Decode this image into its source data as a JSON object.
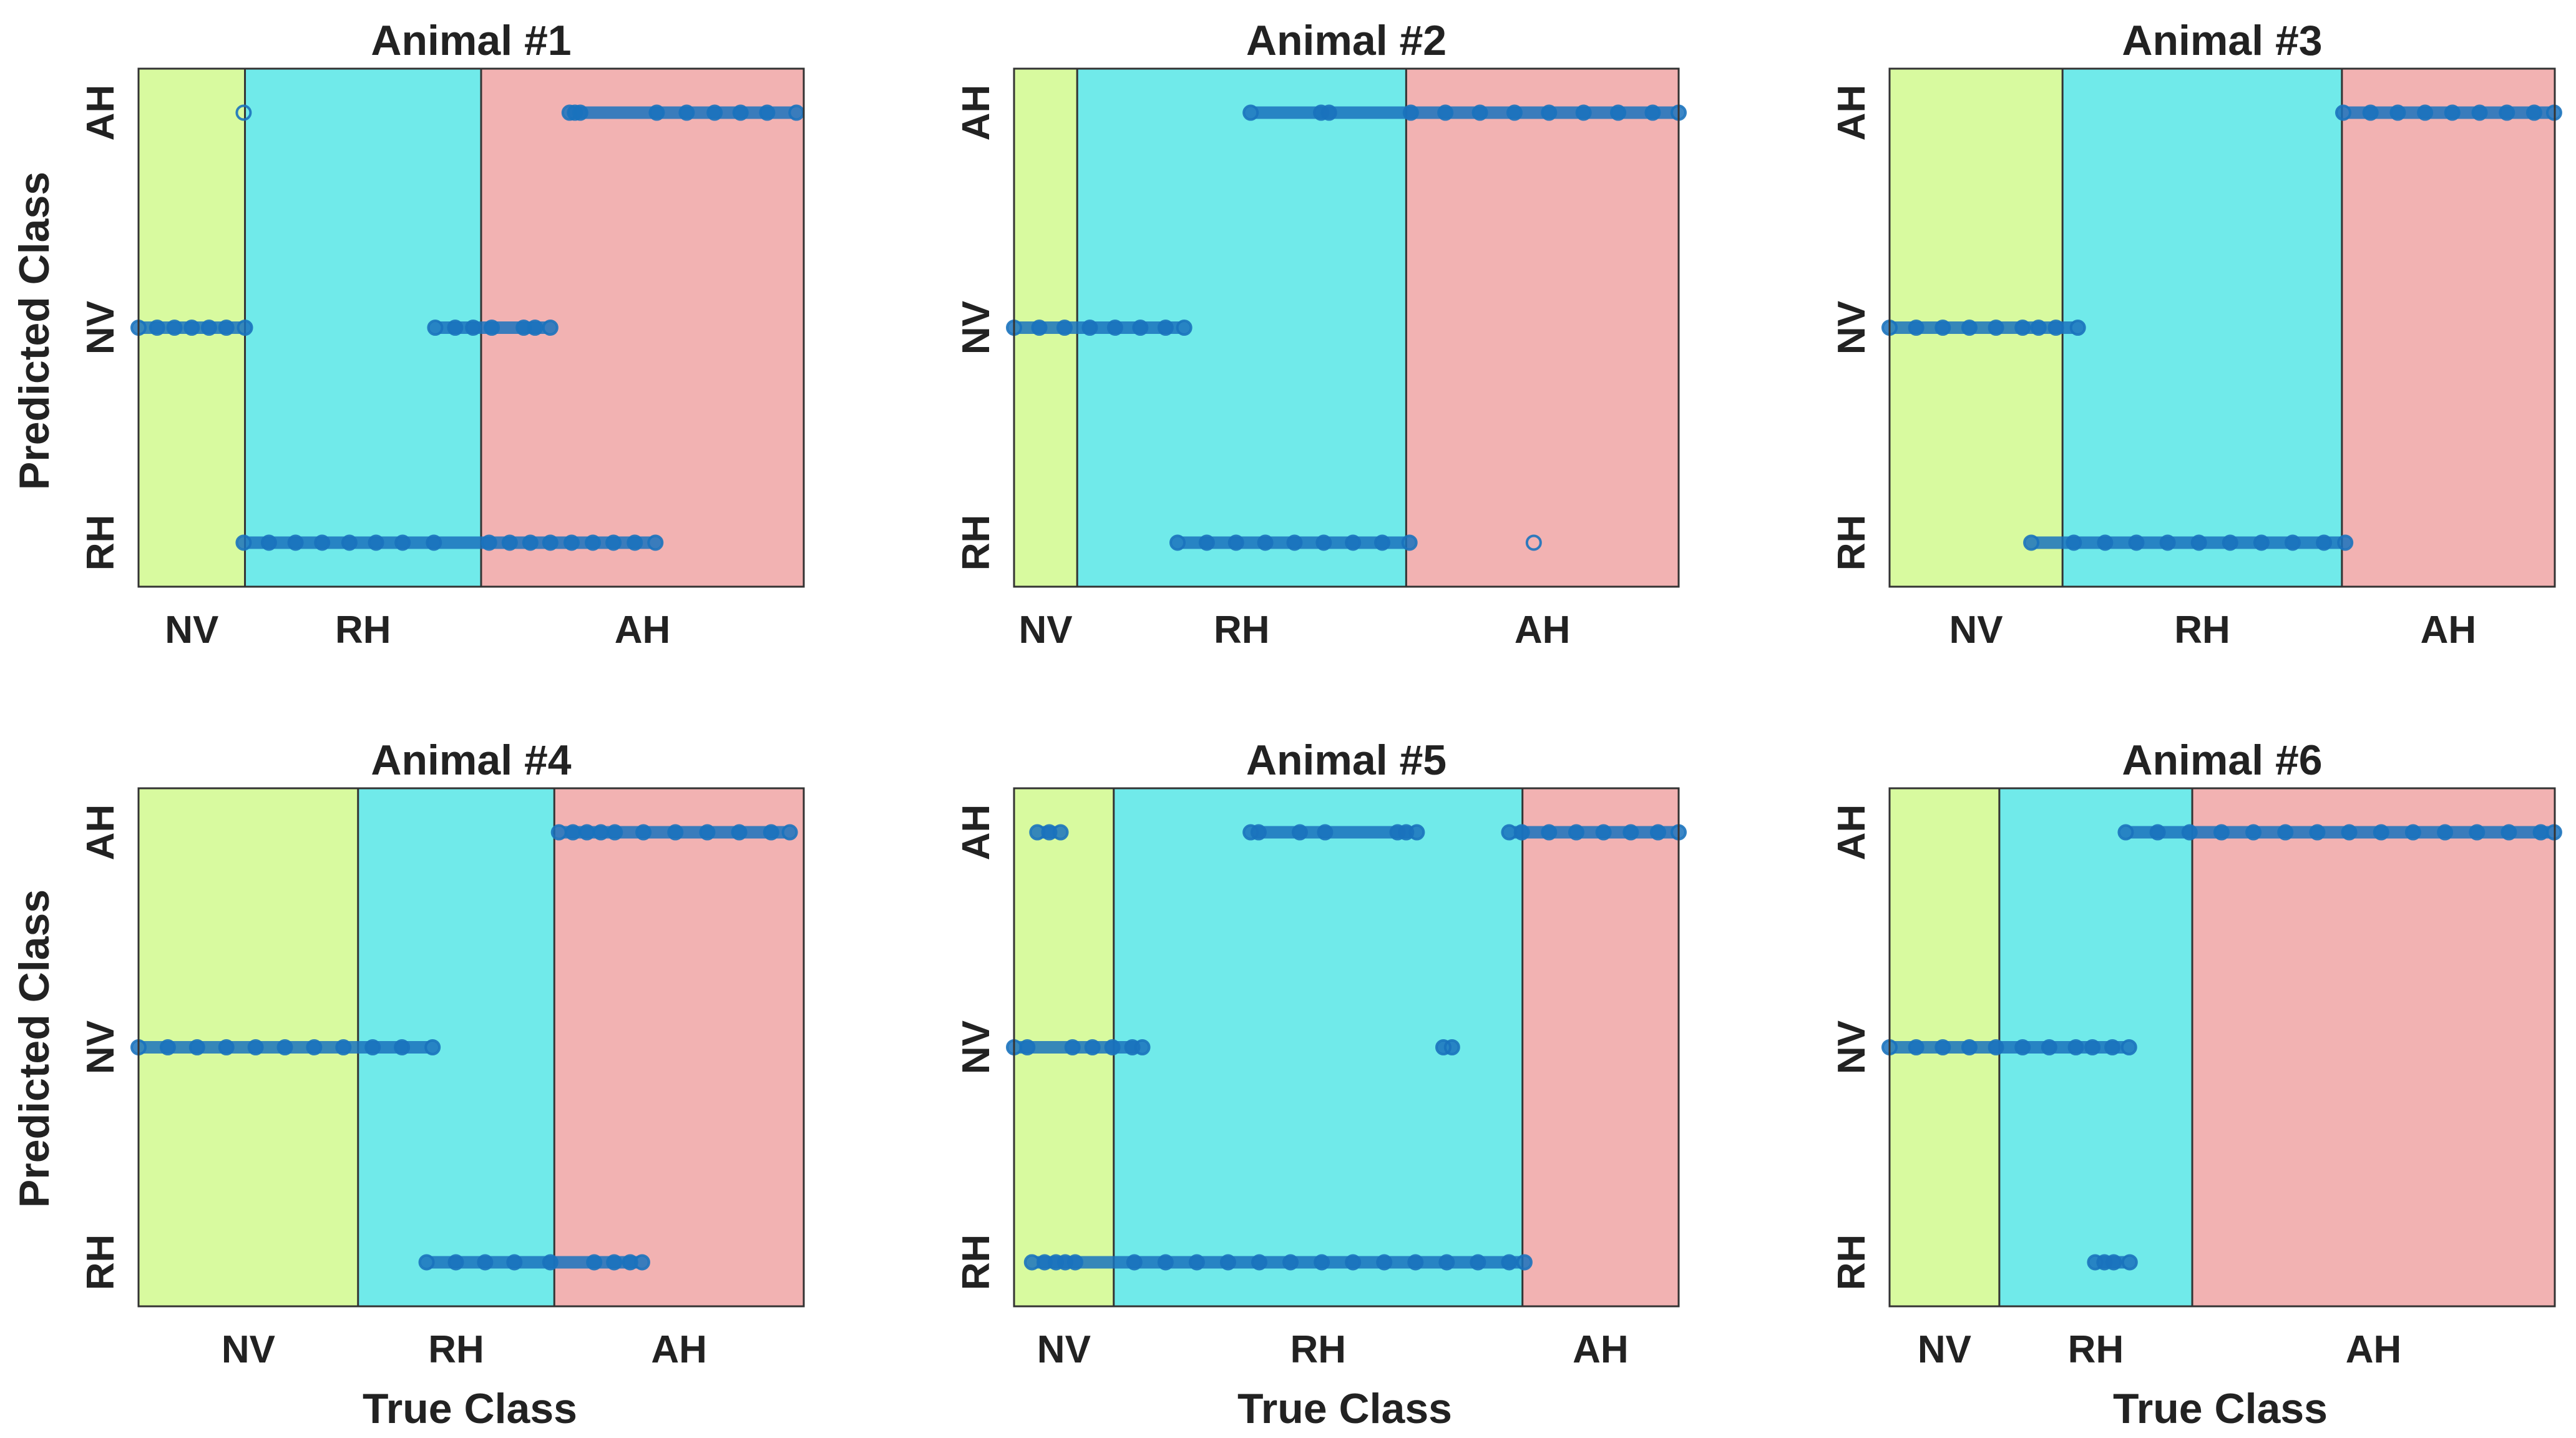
{
  "figure": {
    "y_label": "Predicted Class",
    "x_label": "True Class"
  },
  "colors": {
    "NV": "#d8fa9f",
    "RH": "#70eaea",
    "AH": "#f2b2b2",
    "marker": "#1a72bd",
    "frame": "#333333"
  },
  "chart_data": [
    {
      "type": "scatter",
      "title": "Animal #1",
      "x_range": [
        0,
        100
      ],
      "y_categories": [
        "RH",
        "NV",
        "AH"
      ],
      "regions": [
        {
          "label": "NV",
          "from": 0,
          "to": 16
        },
        {
          "label": "RH",
          "from": 16,
          "to": 51.5
        },
        {
          "label": "AH",
          "from": 51.5,
          "to": 100
        }
      ],
      "points": [
        {
          "y": "AH",
          "x": [
            15.8,
            64.8,
            65.6,
            66.4,
            77.9,
            82.4,
            86.6,
            90.5,
            94.5,
            98.9
          ]
        },
        {
          "y": "NV",
          "x": [
            0,
            2.8,
            5.4,
            8,
            10.6,
            13.2,
            16,
            44.6,
            47.6,
            50.3,
            53.1,
            57.9,
            59.6,
            61.9
          ]
        },
        {
          "y": "RH",
          "x": [
            15.8,
            19.6,
            23.6,
            27.6,
            31.7,
            35.7,
            39.7,
            44.4,
            52.7,
            55.8,
            58.9,
            61.9,
            65.1,
            68.3,
            71.4,
            74.6,
            77.7
          ]
        }
      ]
    },
    {
      "type": "scatter",
      "title": "Animal #2",
      "x_range": [
        0,
        100
      ],
      "y_categories": [
        "RH",
        "NV",
        "AH"
      ],
      "regions": [
        {
          "label": "NV",
          "from": 0,
          "to": 9.5
        },
        {
          "label": "RH",
          "from": 9.5,
          "to": 59
        },
        {
          "label": "AH",
          "from": 59,
          "to": 100
        }
      ],
      "points": [
        {
          "y": "AH",
          "x": [
            35.6,
            46.2,
            47.4,
            59.7,
            64.9,
            70.1,
            75.3,
            80.5,
            85.7,
            90.9,
            96.1,
            100
          ]
        },
        {
          "y": "NV",
          "x": [
            0,
            3.8,
            7.6,
            11.4,
            15.2,
            19,
            22.8,
            25.6
          ]
        },
        {
          "y": "RH",
          "x": [
            24.6,
            29,
            33.4,
            37.8,
            42.2,
            46.6,
            51,
            55.4,
            59.5,
            78.2
          ]
        }
      ]
    },
    {
      "type": "scatter",
      "title": "Animal #3",
      "x_range": [
        0,
        100
      ],
      "y_categories": [
        "RH",
        "NV",
        "AH"
      ],
      "regions": [
        {
          "label": "NV",
          "from": 0,
          "to": 26
        },
        {
          "label": "RH",
          "from": 26,
          "to": 68
        },
        {
          "label": "AH",
          "from": 68,
          "to": 100
        }
      ],
      "points": [
        {
          "y": "AH",
          "x": [
            68.2,
            72.3,
            76.4,
            80.5,
            84.6,
            88.7,
            92.8,
            96.9,
            99.9
          ]
        },
        {
          "y": "NV",
          "x": [
            0,
            4,
            8,
            12,
            16,
            20,
            22.4,
            25,
            28.3
          ]
        },
        {
          "y": "RH",
          "x": [
            21.3,
            27.7,
            32.4,
            37.1,
            41.8,
            46.5,
            51.2,
            55.9,
            60.6,
            65.3,
            68.5
          ]
        }
      ]
    },
    {
      "type": "scatter",
      "title": "Animal #4",
      "x_range": [
        0,
        100
      ],
      "y_categories": [
        "RH",
        "NV",
        "AH"
      ],
      "regions": [
        {
          "label": "NV",
          "from": 0,
          "to": 33
        },
        {
          "label": "RH",
          "from": 33,
          "to": 62.5
        },
        {
          "label": "AH",
          "from": 62.5,
          "to": 100
        }
      ],
      "points": [
        {
          "y": "AH",
          "x": [
            63.2,
            65.3,
            67.4,
            69.5,
            71.6,
            75.9,
            80.7,
            85.5,
            90.3,
            95.1,
            97.9
          ]
        },
        {
          "y": "NV",
          "x": [
            0,
            4.4,
            8.8,
            13.2,
            17.6,
            22,
            26.4,
            30.8,
            35.2,
            39.6,
            44.2
          ]
        },
        {
          "y": "RH",
          "x": [
            43.3,
            47.7,
            52.1,
            56.5,
            61.9,
            68.5,
            71.5,
            73.9,
            75.7
          ]
        }
      ]
    },
    {
      "type": "scatter",
      "title": "Animal #5",
      "x_range": [
        0,
        100
      ],
      "y_categories": [
        "RH",
        "NV",
        "AH"
      ],
      "regions": [
        {
          "label": "NV",
          "from": 0,
          "to": 15
        },
        {
          "label": "RH",
          "from": 15,
          "to": 76.5
        },
        {
          "label": "AH",
          "from": 76.5,
          "to": 100
        }
      ],
      "points": [
        {
          "y": "AH",
          "x": [
            3.5,
            5.3,
            7,
            35.6,
            36.8,
            43,
            46.8,
            57.7,
            59,
            60.6,
            74.5,
            76.4,
            80.5,
            84.6,
            88.7,
            92.8,
            96.9,
            100
          ]
        },
        {
          "y": "NV",
          "x": [
            0,
            2,
            8.8,
            11.8,
            14.8,
            17.8,
            19.3,
            64.6,
            65.9
          ]
        },
        {
          "y": "RH",
          "x": [
            2.7,
            4.6,
            6.3,
            7.7,
            9.2,
            18.1,
            22.8,
            27.5,
            32.2,
            36.9,
            41.6,
            46.3,
            51,
            55.7,
            60.4,
            65.1,
            69.8,
            74.5,
            76.8
          ]
        }
      ]
    },
    {
      "type": "scatter",
      "title": "Animal #6",
      "x_range": [
        0,
        100
      ],
      "y_categories": [
        "RH",
        "NV",
        "AH"
      ],
      "regions": [
        {
          "label": "NV",
          "from": 0,
          "to": 16.5
        },
        {
          "label": "RH",
          "from": 16.5,
          "to": 45.5
        },
        {
          "label": "AH",
          "from": 45.5,
          "to": 100
        }
      ],
      "points": [
        {
          "y": "AH",
          "x": [
            35.5,
            40.3,
            45.1,
            49.9,
            54.7,
            59.5,
            64.3,
            69.1,
            73.9,
            78.7,
            83.5,
            88.3,
            93.1,
            97.9,
            99.9
          ]
        },
        {
          "y": "NV",
          "x": [
            0,
            4,
            8,
            12,
            16,
            20,
            24,
            28,
            30.5,
            33.5,
            36
          ]
        },
        {
          "y": "RH",
          "x": [
            30.9,
            32.3,
            33.7,
            36.1
          ]
        }
      ]
    }
  ]
}
